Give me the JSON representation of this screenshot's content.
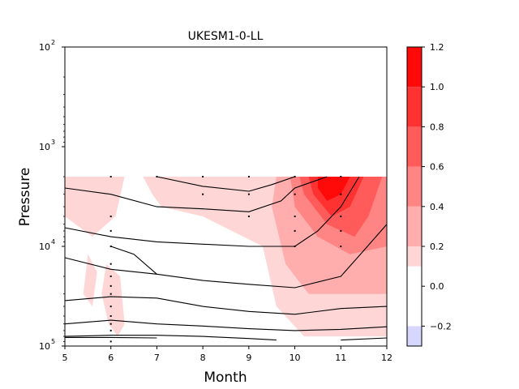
{
  "chart_data": {
    "type": "heatmap",
    "title": "UKESM1-0-LL",
    "xlabel": "Month",
    "ylabel": "Pressure",
    "x_ticks": [
      5,
      6,
      7,
      8,
      9,
      10,
      11,
      12
    ],
    "xlim": [
      5,
      12
    ],
    "y_scale": "log",
    "y_inverted": true,
    "ylim": [
      100,
      100000
    ],
    "y_ticks": [
      {
        "base": "10",
        "exp": "2",
        "value": 100
      },
      {
        "base": "10",
        "exp": "3",
        "value": 1000
      },
      {
        "base": "10",
        "exp": "4",
        "value": 10000
      },
      {
        "base": "10",
        "exp": "5",
        "value": 100000
      }
    ],
    "data_top_pressure": 2000,
    "colorbar": {
      "levels": [
        -0.3,
        -0.2,
        0.1,
        0.2,
        0.4,
        0.6,
        0.8,
        1.0,
        1.2
      ],
      "colors": [
        "#d6d6ff",
        "#ffffff",
        "#ffd6d6",
        "#ffadad",
        "#ff8484",
        "#ff5b5b",
        "#ff3232",
        "#ff0909"
      ],
      "tick_labels": [
        "−0.2",
        "0.0",
        "0.2",
        "0.4",
        "0.6",
        "0.8",
        "1.0",
        "1.2"
      ],
      "tick_values": [
        -0.2,
        0.0,
        0.2,
        0.4,
        0.6,
        0.8,
        1.0,
        1.2
      ]
    },
    "filled_regions": [
      {
        "level": 0.1,
        "points": [
          [
            5,
            2000
          ],
          [
            6.3,
            2000
          ],
          [
            6.1,
            5000
          ],
          [
            5.6,
            8000
          ],
          [
            5,
            5000
          ]
        ]
      },
      {
        "level": 0.1,
        "points": [
          [
            6.7,
            2000
          ],
          [
            12,
            2000
          ],
          [
            12,
            80000
          ],
          [
            10.2,
            80000
          ],
          [
            9.6,
            40000
          ],
          [
            9.3,
            10000
          ],
          [
            8,
            5000
          ],
          [
            7.1,
            4000
          ],
          [
            6.9,
            3000
          ]
        ]
      },
      {
        "level": 0.1,
        "points": [
          [
            5.5,
            12000
          ],
          [
            5.7,
            18000
          ],
          [
            5.6,
            40000
          ],
          [
            5.4,
            30000
          ]
        ]
      },
      {
        "level": 0.1,
        "points": [
          [
            5.9,
            15000
          ],
          [
            6.2,
            20000
          ],
          [
            6.3,
            60000
          ],
          [
            6.15,
            80000
          ],
          [
            5.95,
            60000
          ],
          [
            5.8,
            30000
          ]
        ]
      },
      {
        "level": 0.2,
        "points": [
          [
            9.6,
            2000
          ],
          [
            12,
            2000
          ],
          [
            12,
            30000
          ],
          [
            10.3,
            30000
          ],
          [
            9.8,
            15000
          ],
          [
            9.5,
            4000
          ]
        ]
      },
      {
        "level": 0.4,
        "points": [
          [
            9.9,
            2000
          ],
          [
            12,
            2000
          ],
          [
            12,
            10000
          ],
          [
            11.2,
            12000
          ],
          [
            10.5,
            8000
          ],
          [
            10,
            4000
          ]
        ]
      },
      {
        "level": 0.6,
        "points": [
          [
            10.1,
            2000
          ],
          [
            11.9,
            2000
          ],
          [
            11.6,
            5000
          ],
          [
            11.3,
            8000
          ],
          [
            10.7,
            6000
          ],
          [
            10.2,
            3000
          ]
        ]
      },
      {
        "level": 0.8,
        "points": [
          [
            10.3,
            2000
          ],
          [
            11.5,
            2000
          ],
          [
            11.2,
            4000
          ],
          [
            10.8,
            5000
          ],
          [
            10.4,
            3000
          ]
        ]
      },
      {
        "level": 1.0,
        "points": [
          [
            10.5,
            2000
          ],
          [
            11.2,
            2000
          ],
          [
            11,
            3000
          ],
          [
            10.7,
            3500
          ],
          [
            10.5,
            2600
          ]
        ]
      }
    ],
    "contour_lines": [
      [
        [
          7,
          2000
        ],
        [
          8,
          2500
        ],
        [
          9,
          2800
        ],
        [
          9.5,
          2400
        ],
        [
          10,
          2000
        ]
      ],
      [
        [
          5,
          2600
        ],
        [
          6,
          3000
        ],
        [
          7,
          4000
        ],
        [
          8,
          4200
        ],
        [
          9,
          4500
        ],
        [
          9.7,
          3500
        ],
        [
          10,
          2600
        ],
        [
          10.7,
          2000
        ]
      ],
      [
        [
          5,
          6500
        ],
        [
          6,
          8000
        ],
        [
          7,
          9000
        ],
        [
          8,
          9500
        ],
        [
          9,
          10000
        ],
        [
          10,
          10000
        ],
        [
          10.5,
          7000
        ],
        [
          11,
          4000
        ],
        [
          11.4,
          2000
        ]
      ],
      [
        [
          5,
          13000
        ],
        [
          6,
          17000
        ],
        [
          7,
          19000
        ],
        [
          8,
          22000
        ],
        [
          9,
          24000
        ],
        [
          10,
          26000
        ],
        [
          11,
          20000
        ],
        [
          11.5,
          11000
        ],
        [
          12,
          6000
        ]
      ],
      [
        [
          5,
          35000
        ],
        [
          6,
          32000
        ],
        [
          7,
          33000
        ],
        [
          8,
          40000
        ],
        [
          9,
          45000
        ],
        [
          10,
          48000
        ],
        [
          11,
          42000
        ],
        [
          12,
          40000
        ]
      ],
      [
        [
          5,
          60000
        ],
        [
          6,
          55000
        ],
        [
          7,
          60000
        ],
        [
          8,
          63000
        ],
        [
          9,
          67000
        ],
        [
          10,
          70000
        ],
        [
          11,
          68000
        ],
        [
          12,
          64000
        ]
      ],
      [
        [
          5,
          80000
        ],
        [
          6,
          78000
        ],
        [
          7,
          78000
        ],
        [
          8,
          80000
        ],
        [
          9,
          84000
        ],
        [
          9.6,
          87000
        ]
      ],
      [
        [
          5,
          82000
        ],
        [
          6,
          82000
        ],
        [
          7,
          83000
        ]
      ],
      [
        [
          11,
          87000
        ],
        [
          12,
          83000
        ]
      ],
      [
        [
          6,
          10000
        ],
        [
          6.5,
          12000
        ],
        [
          7,
          19000
        ]
      ]
    ],
    "marker_points": [
      [
        6,
        2000
      ],
      [
        6,
        5000
      ],
      [
        6,
        7000
      ],
      [
        6,
        10000
      ],
      [
        6,
        15000
      ],
      [
        6,
        20000
      ],
      [
        6,
        25000
      ],
      [
        6,
        30000
      ],
      [
        6,
        40000
      ],
      [
        6,
        50000
      ],
      [
        6,
        60000
      ],
      [
        6,
        70000
      ],
      [
        6,
        90000
      ],
      [
        7,
        2000
      ],
      [
        8,
        2000
      ],
      [
        8,
        3000
      ],
      [
        9,
        2000
      ],
      [
        9,
        3000
      ],
      [
        9,
        5000
      ],
      [
        10,
        2000
      ],
      [
        10,
        3000
      ],
      [
        10,
        5000
      ],
      [
        10,
        7000
      ],
      [
        10,
        10000
      ],
      [
        11,
        2000
      ],
      [
        11,
        3000
      ],
      [
        11,
        5000
      ],
      [
        11,
        7000
      ],
      [
        11,
        10000
      ]
    ]
  }
}
